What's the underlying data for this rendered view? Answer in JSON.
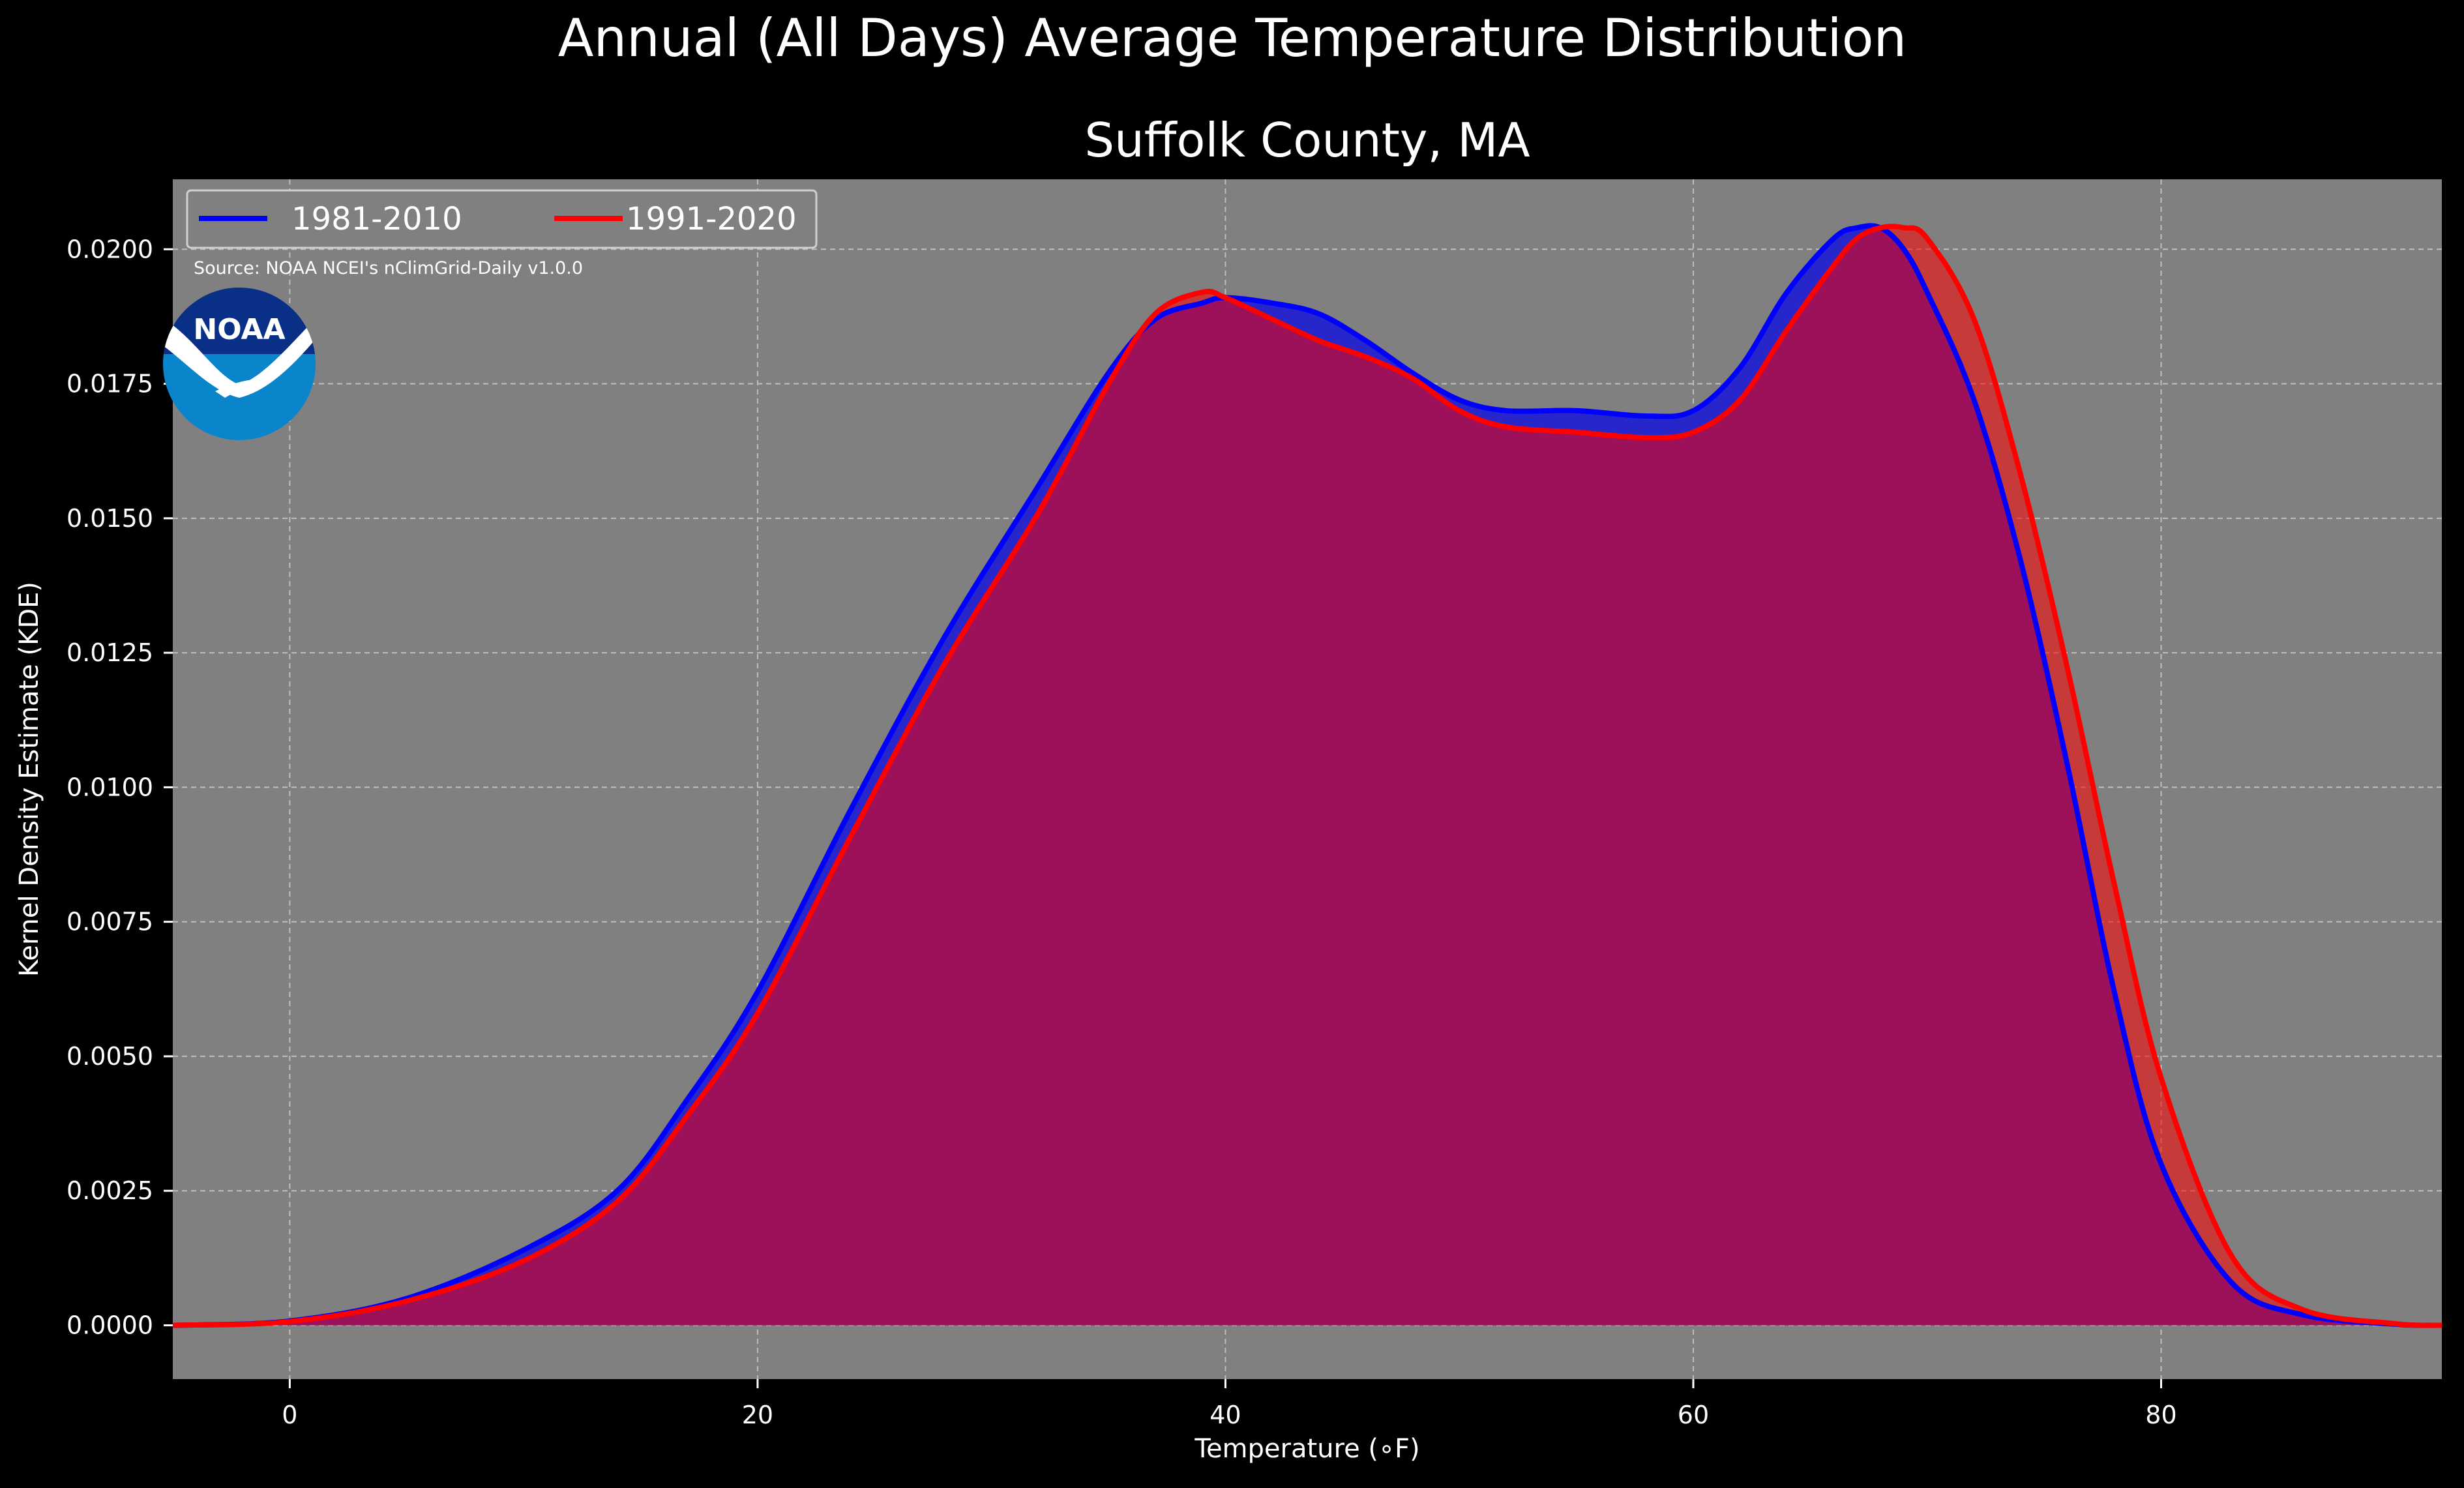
{
  "chart_data": {
    "type": "area",
    "title": "Annual (All Days) Average Temperature Distribution",
    "subtitle": "Suffolk County, MA",
    "xlabel": "Temperature (∘F)",
    "ylabel": "Kernel Density Estimate (KDE)",
    "xlim": [
      -5,
      92
    ],
    "ylim": [
      -0.001,
      0.0213
    ],
    "x_ticks": [
      0,
      20,
      40,
      60,
      80
    ],
    "y_ticks": [
      0.0,
      0.0025,
      0.005,
      0.0075,
      0.01,
      0.0125,
      0.015,
      0.0175,
      0.02
    ],
    "y_tick_labels": [
      "0.0000",
      "0.0025",
      "0.0050",
      "0.0075",
      "0.0100",
      "0.0125",
      "0.0150",
      "0.0175",
      "0.0200"
    ],
    "grid": true,
    "legend_position": "top-left",
    "source_note": "Source: NOAA NCEI's nClimGrid-Daily v1.0.0",
    "logo_text": "NOAA",
    "colors": {
      "background": "#000000",
      "plot_background": "#808080",
      "text": "#ffffff",
      "series_1981": "#0000ff",
      "series_1991": "#ff0000",
      "fill_1981": "#2626ca",
      "fill_1991": "#a01e5c",
      "logo_dark": "#0a2f86",
      "logo_light": "#0a85cc"
    },
    "x": [
      -5,
      0,
      5,
      10,
      14,
      17,
      20,
      24,
      28,
      32,
      35,
      37,
      39,
      40,
      42,
      44,
      46,
      48,
      50,
      52,
      55,
      58,
      60,
      62,
      64,
      66,
      67,
      68,
      69,
      70,
      72,
      74,
      76,
      78,
      80,
      83,
      86,
      90,
      92
    ],
    "series": [
      {
        "name": "1981-2010",
        "values": [
          0.0,
          8e-05,
          0.0005,
          0.0014,
          0.0025,
          0.0042,
          0.0062,
          0.0096,
          0.0128,
          0.0156,
          0.0177,
          0.0187,
          0.019,
          0.0191,
          0.019,
          0.0188,
          0.0183,
          0.0177,
          0.0172,
          0.017,
          0.017,
          0.0169,
          0.017,
          0.0178,
          0.0192,
          0.0202,
          0.0204,
          0.0204,
          0.02,
          0.0192,
          0.0172,
          0.0142,
          0.0104,
          0.0062,
          0.003,
          0.0008,
          0.0002,
          2e-05,
          0.0
        ]
      },
      {
        "name": "1991-2020",
        "values": [
          0.0,
          7e-05,
          0.00045,
          0.0012,
          0.0023,
          0.0039,
          0.0058,
          0.0091,
          0.0123,
          0.0151,
          0.0175,
          0.0188,
          0.0192,
          0.0191,
          0.0187,
          0.0183,
          0.018,
          0.0176,
          0.017,
          0.0167,
          0.0166,
          0.0165,
          0.0166,
          0.0172,
          0.0185,
          0.0197,
          0.0202,
          0.0204,
          0.0204,
          0.0202,
          0.0187,
          0.0158,
          0.0122,
          0.0082,
          0.0046,
          0.0013,
          0.0003,
          3e-05,
          0.0
        ]
      }
    ]
  }
}
